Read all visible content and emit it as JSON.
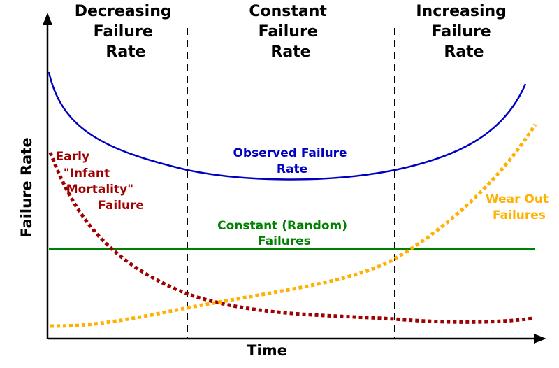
{
  "chart_data": {
    "type": "line",
    "xlabel": "Time",
    "ylabel": "Failure Rate",
    "regions": [
      {
        "lines": [
          "Decreasing",
          "Failure",
          "Rate"
        ]
      },
      {
        "lines": [
          "Constant",
          "Failure",
          "Rate"
        ]
      },
      {
        "lines": [
          "Increasing",
          "Failure",
          "Rate"
        ]
      }
    ],
    "series": [
      {
        "name": "Observed Failure Rate",
        "label_lines": [
          "Observed Failure",
          "Rate"
        ],
        "color": "#0000c0",
        "style": "solid"
      },
      {
        "name": "Constant (Random) Failures",
        "label_lines": [
          "Constant (Random)",
          "Failures"
        ],
        "color": "#008000",
        "style": "solid"
      },
      {
        "name": "Early \"Infant Mortality\" Failure",
        "label_lines": [
          "Early",
          "\"Infant",
          "Mortality\"",
          "Failure"
        ],
        "color": "#a00000",
        "style": "dotted"
      },
      {
        "name": "Wear Out Failures",
        "label_lines": [
          "Wear Out",
          "Failures"
        ],
        "color": "#ffb000",
        "style": "dotted"
      }
    ]
  }
}
